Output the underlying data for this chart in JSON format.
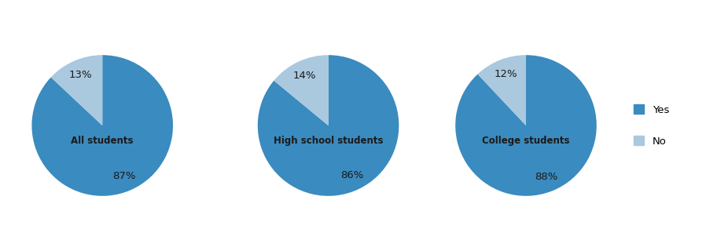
{
  "pies": [
    {
      "title": "All students",
      "yes_pct": 87,
      "no_pct": 13
    },
    {
      "title": "High school students",
      "yes_pct": 86,
      "no_pct": 14
    },
    {
      "title": "College students",
      "yes_pct": 88,
      "no_pct": 12
    }
  ],
  "yes_color": "#3a8bbf",
  "no_color": "#aac8de",
  "text_color": "#1a1a1a",
  "title_fontsize": 8.5,
  "pct_fontsize": 9.5,
  "legend_labels": [
    "Yes",
    "No"
  ],
  "startangle": 90,
  "background_color": "#ffffff"
}
